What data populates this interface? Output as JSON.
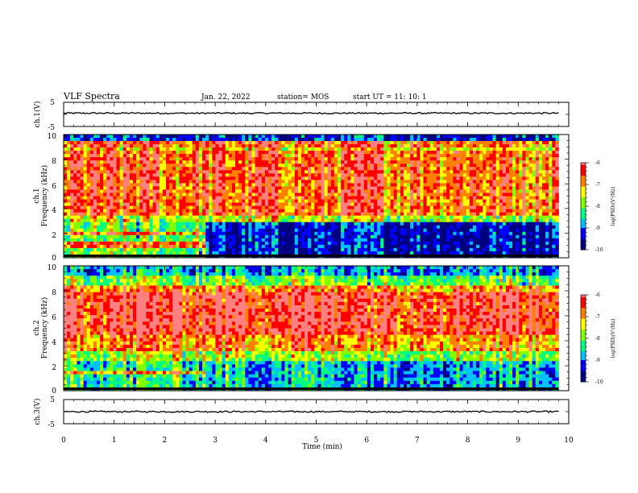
{
  "header": {
    "title": "VLF Spectra",
    "date": "Jan. 22, 2022",
    "station": "station= MOS",
    "start": "start  UT =    11: 10: 1"
  },
  "chart_data": [
    {
      "type": "line",
      "ylabel": "ch.1(V)",
      "ylim": [
        -5,
        5
      ],
      "yticks": [
        "5",
        "-5"
      ],
      "xlim": [
        0,
        10
      ],
      "series": [
        {
          "x": [
            0,
            9.8
          ],
          "y": [
            0.5,
            0.5
          ]
        }
      ]
    },
    {
      "type": "heatmap",
      "ylabel": "ch.1\nFrequency (kHz)",
      "ylabel_lines": [
        "ch.1",
        "Frequency (kHz)"
      ],
      "ylim": [
        0,
        10
      ],
      "yticks": [
        "0",
        "2",
        "4",
        "6",
        "8",
        "10"
      ],
      "xlim": [
        0,
        10
      ],
      "data_xlim": [
        0,
        9.8
      ],
      "colorbar": {
        "label": "log(PSD)(V²/Hz)",
        "range": [
          -10,
          -6
        ],
        "ticks": [
          "-6",
          "-7",
          "-8",
          "-9",
          "-10"
        ]
      }
    },
    {
      "type": "heatmap",
      "ylabel": "ch.2\nFrequency (kHz)",
      "ylabel_lines": [
        "ch.2",
        "Frequency (kHz)"
      ],
      "ylim": [
        0,
        10
      ],
      "yticks": [
        "0",
        "2",
        "4",
        "6",
        "8",
        "10"
      ],
      "xlim": [
        0,
        10
      ],
      "data_xlim": [
        0,
        9.8
      ],
      "colorbar": {
        "label": "log(PSD)(V²/Hz)",
        "range": [
          -10,
          -6
        ],
        "ticks": [
          "-6",
          "-7",
          "-8",
          "-9",
          "-10"
        ]
      }
    },
    {
      "type": "line",
      "ylabel": "ch.3(V)",
      "ylim": [
        -5,
        5
      ],
      "yticks": [
        "5",
        "-5"
      ],
      "xlim": [
        0,
        10
      ],
      "xlabel": "Time  (min)",
      "xticks": [
        "0",
        "1",
        "2",
        "3",
        "4",
        "5",
        "6",
        "7",
        "8",
        "9",
        "10"
      ],
      "series": [
        {
          "x": [
            0,
            9.8
          ],
          "y": [
            0,
            0
          ]
        }
      ]
    }
  ],
  "colors": {
    "scale": [
      "#00007f",
      "#0000ff",
      "#00c0ff",
      "#00ff80",
      "#80ff00",
      "#ffff00",
      "#ff8000",
      "#ff0000",
      "#ff8080",
      "#ffffff"
    ]
  }
}
